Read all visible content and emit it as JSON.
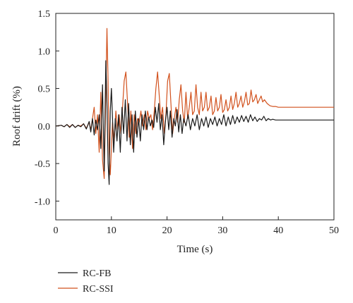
{
  "chart_data": {
    "type": "line",
    "xlabel": "Time (s)",
    "ylabel": "Roof drift (%)",
    "xlim": [
      0,
      50
    ],
    "ylim": [
      -1.25,
      1.5
    ],
    "xticks": [
      0,
      10,
      20,
      30,
      40,
      50
    ],
    "yticks": [
      1.5,
      1.0,
      0.5,
      0.0,
      -0.5,
      -1.0
    ],
    "ytick_labels": [
      "1.5",
      "1.0",
      "0.5",
      "0.0",
      "-0.5",
      "-1.0"
    ],
    "grid": false,
    "legend_position": "bottom-left",
    "series": [
      {
        "name": "RC-FB",
        "color": "#1a1a1a",
        "x": [
          0,
          1,
          1.5,
          2,
          2.5,
          3,
          3.5,
          4,
          4.5,
          5,
          5.5,
          6,
          6.3,
          6.6,
          6.9,
          7.2,
          7.5,
          7.8,
          8.1,
          8.4,
          8.7,
          9.0,
          9.2,
          9.4,
          9.6,
          9.8,
          10.0,
          10.2,
          10.4,
          10.7,
          11.0,
          11.3,
          11.6,
          11.9,
          12.2,
          12.5,
          12.8,
          13.1,
          13.4,
          13.7,
          14.0,
          14.3,
          14.6,
          14.9,
          15.2,
          15.5,
          15.8,
          16.1,
          16.4,
          16.7,
          17.0,
          17.3,
          17.6,
          17.9,
          18.2,
          18.5,
          18.8,
          19.1,
          19.4,
          19.7,
          20.0,
          20.3,
          20.6,
          20.9,
          21.2,
          21.5,
          21.8,
          22.1,
          22.4,
          22.7,
          23.0,
          23.4,
          23.8,
          24.2,
          24.6,
          25.0,
          25.4,
          25.8,
          26.2,
          26.6,
          27.0,
          27.4,
          27.8,
          28.2,
          28.6,
          29.0,
          29.4,
          29.8,
          30.2,
          30.6,
          31.0,
          31.4,
          31.8,
          32.2,
          32.6,
          33.0,
          33.4,
          33.8,
          34.2,
          34.6,
          35.0,
          35.4,
          35.8,
          36.2,
          36.6,
          37.0,
          37.4,
          37.8,
          38.2,
          38.6,
          39.0,
          39.5,
          40.0,
          41,
          42,
          43,
          44,
          45,
          46,
          47,
          48,
          49,
          50
        ],
        "y": [
          0,
          0.01,
          -0.01,
          0.02,
          -0.02,
          0.02,
          -0.02,
          0.01,
          -0.01,
          0.03,
          -0.04,
          0.06,
          -0.08,
          0.1,
          -0.12,
          0.08,
          -0.05,
          0.15,
          -0.3,
          0.55,
          -0.6,
          0.87,
          0.3,
          -0.5,
          -0.78,
          0.2,
          0.5,
          0.1,
          -0.35,
          0.1,
          -0.2,
          0.15,
          -0.35,
          0.25,
          -0.1,
          0.35,
          -0.2,
          0.3,
          -0.25,
          0.15,
          -0.35,
          0.2,
          -0.15,
          0.1,
          -0.2,
          0.15,
          -0.05,
          0.2,
          -0.05,
          0.12,
          0.0,
          0.08,
          -0.02,
          0.25,
          0.05,
          0.3,
          -0.05,
          0.15,
          -0.25,
          0.05,
          0.25,
          -0.05,
          0.2,
          -0.15,
          0.1,
          0.0,
          0.22,
          -0.08,
          0.15,
          -0.1,
          0.1,
          0.0,
          0.15,
          -0.05,
          0.1,
          0.0,
          0.15,
          -0.05,
          0.1,
          0.0,
          0.12,
          -0.02,
          0.1,
          0.02,
          0.12,
          0.0,
          0.1,
          0.02,
          0.15,
          0.0,
          0.12,
          0.02,
          0.14,
          0.03,
          0.12,
          0.05,
          0.14,
          0.06,
          0.13,
          0.05,
          0.15,
          0.07,
          0.12,
          0.06,
          0.1,
          0.08,
          0.13,
          0.07,
          0.1,
          0.08,
          0.09,
          0.08,
          0.08,
          0.08,
          0.08,
          0.08,
          0.08,
          0.08,
          0.08,
          0.08,
          0.08,
          0.08,
          0.08
        ]
      },
      {
        "name": "RC-SSI",
        "color": "#d2521e",
        "x": [
          0,
          1,
          1.5,
          2,
          2.5,
          3,
          3.5,
          4,
          4.5,
          5,
          5.5,
          6,
          6.3,
          6.6,
          6.9,
          7.2,
          7.5,
          7.8,
          8.1,
          8.4,
          8.7,
          9.0,
          9.2,
          9.4,
          9.6,
          9.8,
          10.0,
          10.2,
          10.5,
          10.8,
          11.1,
          11.4,
          11.7,
          12.0,
          12.3,
          12.6,
          12.9,
          13.2,
          13.5,
          13.8,
          14.1,
          14.4,
          14.7,
          15.0,
          15.3,
          15.6,
          15.9,
          16.2,
          16.5,
          16.8,
          17.1,
          17.4,
          17.7,
          18.0,
          18.3,
          18.6,
          18.9,
          19.2,
          19.5,
          19.8,
          20.1,
          20.4,
          20.7,
          21.0,
          21.3,
          21.6,
          21.9,
          22.2,
          22.5,
          22.8,
          23.1,
          23.4,
          23.7,
          24.0,
          24.3,
          24.6,
          24.9,
          25.2,
          25.5,
          25.8,
          26.1,
          26.4,
          26.7,
          27.0,
          27.3,
          27.6,
          27.9,
          28.2,
          28.5,
          28.8,
          29.1,
          29.4,
          29.7,
          30.0,
          30.3,
          30.6,
          30.9,
          31.2,
          31.5,
          31.8,
          32.1,
          32.4,
          32.7,
          33.0,
          33.3,
          33.6,
          33.9,
          34.2,
          34.5,
          34.8,
          35.1,
          35.4,
          35.7,
          36.0,
          36.3,
          36.6,
          36.9,
          37.2,
          37.5,
          38.0,
          38.5,
          39.0,
          39.5,
          40.0,
          41,
          42,
          43,
          44,
          45,
          46,
          47,
          48,
          49,
          50
        ],
        "y": [
          0,
          0.01,
          -0.01,
          0.02,
          -0.01,
          0.02,
          -0.02,
          0.01,
          0.0,
          0.03,
          -0.03,
          0.05,
          -0.05,
          0.1,
          0.25,
          -0.1,
          0.15,
          -0.35,
          0.45,
          -0.45,
          -0.7,
          0.45,
          1.3,
          0.6,
          -0.35,
          -0.65,
          -0.3,
          0.05,
          -0.2,
          0.2,
          -0.05,
          0.15,
          -0.1,
          0.25,
          0.6,
          0.72,
          0.3,
          -0.15,
          0.2,
          -0.3,
          0.15,
          -0.1,
          0.1,
          0.05,
          0.2,
          0.0,
          0.15,
          -0.05,
          0.2,
          0.1,
          0.15,
          -0.05,
          0.2,
          0.5,
          0.72,
          0.4,
          0.1,
          0.25,
          -0.1,
          0.15,
          0.6,
          0.7,
          0.3,
          -0.1,
          0.1,
          0.25,
          0.05,
          0.35,
          0.55,
          0.2,
          0.05,
          0.45,
          0.1,
          0.25,
          0.45,
          0.15,
          0.2,
          0.55,
          0.25,
          0.15,
          0.45,
          0.2,
          0.25,
          0.45,
          0.2,
          0.25,
          0.4,
          0.15,
          0.2,
          0.38,
          0.2,
          0.25,
          0.42,
          0.18,
          0.22,
          0.35,
          0.2,
          0.25,
          0.4,
          0.22,
          0.3,
          0.45,
          0.25,
          0.3,
          0.4,
          0.25,
          0.32,
          0.45,
          0.28,
          0.3,
          0.48,
          0.32,
          0.35,
          0.42,
          0.3,
          0.35,
          0.4,
          0.32,
          0.35,
          0.3,
          0.27,
          0.26,
          0.26,
          0.25,
          0.25,
          0.25,
          0.25,
          0.25,
          0.25,
          0.25,
          0.25,
          0.25,
          0.25,
          0.25
        ]
      }
    ]
  }
}
